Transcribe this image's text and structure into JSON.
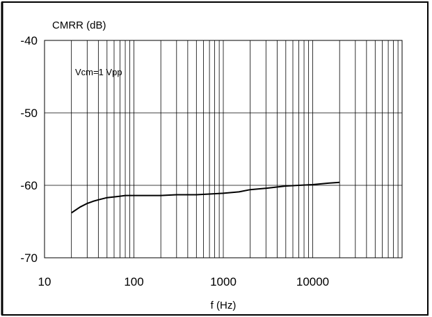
{
  "chart_data": {
    "type": "line",
    "title": "",
    "ylabel": "CMRR (dB)",
    "xlabel": "f (Hz)",
    "x_scale": "log",
    "xlim": [
      10,
      100000
    ],
    "ylim": [
      -70,
      -40
    ],
    "x_ticks": [
      10,
      100,
      1000,
      10000
    ],
    "x_tick_labels": [
      "10",
      "100",
      "1000",
      "10000"
    ],
    "y_ticks": [
      -40,
      -50,
      -60,
      -70
    ],
    "y_tick_labels": [
      "-40",
      "-50",
      "-60",
      "-70"
    ],
    "grid": true,
    "legend": "none",
    "annotation": "Vcm=1 Vpp",
    "series": [
      {
        "color": "#000000",
        "x": [
          20,
          25,
          30,
          35,
          40,
          50,
          60,
          70,
          80,
          100,
          150,
          200,
          300,
          500,
          700,
          1000,
          1500,
          2000,
          3000,
          5000,
          7000,
          10000,
          15000,
          20000
        ],
        "y": [
          -63.8,
          -63.0,
          -62.5,
          -62.2,
          -62.0,
          -61.7,
          -61.6,
          -61.5,
          -61.4,
          -61.4,
          -61.4,
          -61.4,
          -61.3,
          -61.3,
          -61.2,
          -61.1,
          -60.9,
          -60.6,
          -60.4,
          -60.1,
          -60.0,
          -59.9,
          -59.7,
          -59.6
        ]
      }
    ]
  }
}
